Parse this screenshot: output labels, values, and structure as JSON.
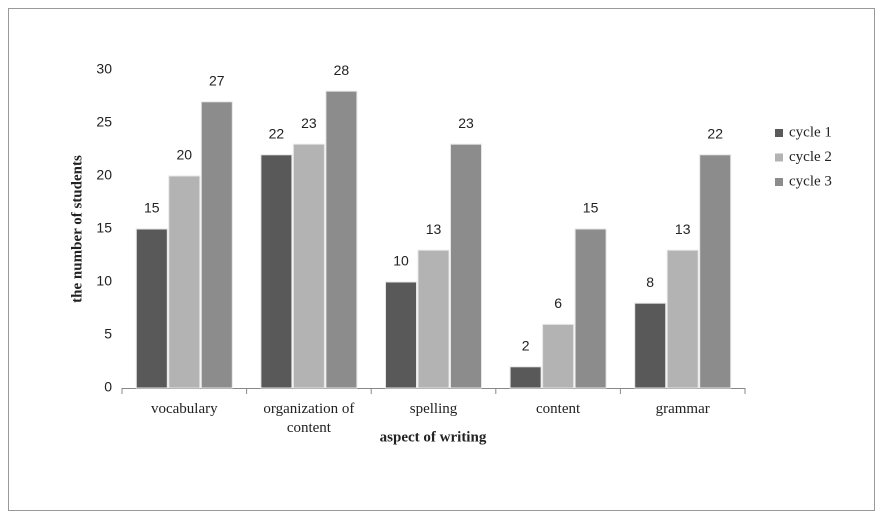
{
  "chart_data": {
    "type": "bar",
    "x_label": "aspect of writing",
    "y_label": "the number of students",
    "categories": [
      "vocabulary",
      "organization of content",
      "spelling",
      "content",
      "grammar"
    ],
    "series": [
      {
        "name": "cycle 1",
        "color": "#595959",
        "values": [
          15,
          22,
          10,
          2,
          8
        ]
      },
      {
        "name": "cycle 2",
        "color": "#b3b3b3",
        "values": [
          20,
          23,
          13,
          6,
          13
        ]
      },
      {
        "name": "cycle 3",
        "color": "#8c8c8c",
        "values": [
          27,
          28,
          23,
          15,
          22
        ]
      }
    ],
    "ylim": [
      0,
      30
    ],
    "yticks": [
      0,
      5,
      10,
      15,
      20,
      25,
      30
    ],
    "grid": false,
    "legend": "right"
  }
}
